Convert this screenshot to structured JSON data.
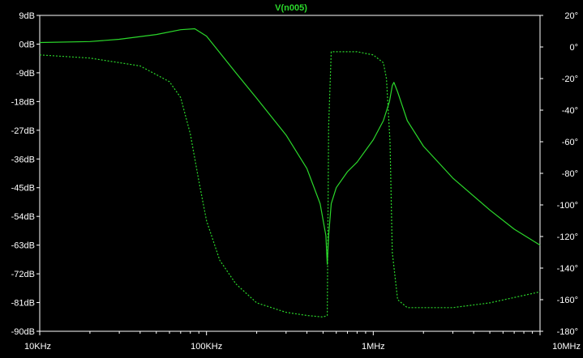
{
  "chart_data": {
    "type": "line",
    "title": "V(n005)",
    "x_scale": "log",
    "x_range_hz": [
      10000,
      10000000
    ],
    "x_ticks": [
      {
        "value": 10000,
        "label": "10KHz"
      },
      {
        "value": 100000,
        "label": "100KHz"
      },
      {
        "value": 1000000,
        "label": "1MHz"
      },
      {
        "value": 10000000,
        "label": "10MHz"
      }
    ],
    "y_left_range": [
      -90,
      9
    ],
    "y_left_ticks": [
      {
        "value": 9,
        "label": "9dB"
      },
      {
        "value": 0,
        "label": "0dB"
      },
      {
        "value": -9,
        "label": "-9dB"
      },
      {
        "value": -18,
        "label": "-18dB"
      },
      {
        "value": -27,
        "label": "-27dB"
      },
      {
        "value": -36,
        "label": "-36dB"
      },
      {
        "value": -45,
        "label": "-45dB"
      },
      {
        "value": -54,
        "label": "-54dB"
      },
      {
        "value": -63,
        "label": "-63dB"
      },
      {
        "value": -72,
        "label": "-72dB"
      },
      {
        "value": -81,
        "label": "-81dB"
      },
      {
        "value": -90,
        "label": "-90dB"
      }
    ],
    "y_right_range": [
      -180,
      20
    ],
    "y_right_ticks": [
      {
        "value": 20,
        "label": "20°"
      },
      {
        "value": 0,
        "label": "0°"
      },
      {
        "value": -20,
        "label": "-20°"
      },
      {
        "value": -40,
        "label": "-40°"
      },
      {
        "value": -60,
        "label": "-60°"
      },
      {
        "value": -80,
        "label": "-80°"
      },
      {
        "value": -100,
        "label": "-100°"
      },
      {
        "value": -120,
        "label": "-120°"
      },
      {
        "value": -140,
        "label": "-140°"
      },
      {
        "value": -160,
        "label": "-160°"
      },
      {
        "value": -180,
        "label": "-180°"
      }
    ],
    "grid": false,
    "colors": {
      "background": "#000000",
      "trace": "#2bd82b",
      "title": "#2bd82b",
      "axis": "#ffffff",
      "tick_labels": "#ffffff"
    },
    "series": [
      {
        "axis": "left",
        "style": "solid",
        "x": [
          10000,
          20000,
          30000,
          50000,
          70000,
          85000,
          100000,
          150000,
          200000,
          300000,
          400000,
          480000,
          520000,
          530000,
          540000,
          560000,
          600000,
          700000,
          800000,
          1000000,
          1150000,
          1250000,
          1300000,
          1330000,
          1400000,
          1600000,
          2000000,
          3000000,
          5000000,
          7000000,
          10000000
        ],
        "y": [
          0.5,
          0.8,
          1.5,
          3.0,
          4.5,
          4.8,
          2.5,
          -9.0,
          -17.0,
          -28.5,
          -39.0,
          -50.0,
          -60.0,
          -69.0,
          -60.0,
          -50.0,
          -45.0,
          -40.0,
          -37.0,
          -30.0,
          -24.0,
          -18.0,
          -13.0,
          -12.0,
          -15.0,
          -24.0,
          -32.0,
          -42.0,
          -52.0,
          -58.0,
          -63.0
        ]
      },
      {
        "axis": "right",
        "style": "dashed",
        "x": [
          10000,
          20000,
          40000,
          60000,
          70000,
          80000,
          90000,
          100000,
          120000,
          150000,
          200000,
          300000,
          400000,
          500000,
          530000,
          540000,
          560000,
          650000,
          800000,
          1000000,
          1150000,
          1200000,
          1260000,
          1300000,
          1400000,
          1600000,
          2000000,
          3000000,
          5000000,
          10000000
        ],
        "y": [
          -5,
          -7,
          -12,
          -22,
          -32,
          -55,
          -85,
          -110,
          -135,
          -150,
          -162,
          -168,
          -170,
          -171,
          -170,
          -50,
          -3,
          -3,
          -3,
          -5,
          -10,
          -20,
          -60,
          -130,
          -160,
          -165,
          -165,
          -165,
          -162,
          -155
        ]
      }
    ]
  }
}
